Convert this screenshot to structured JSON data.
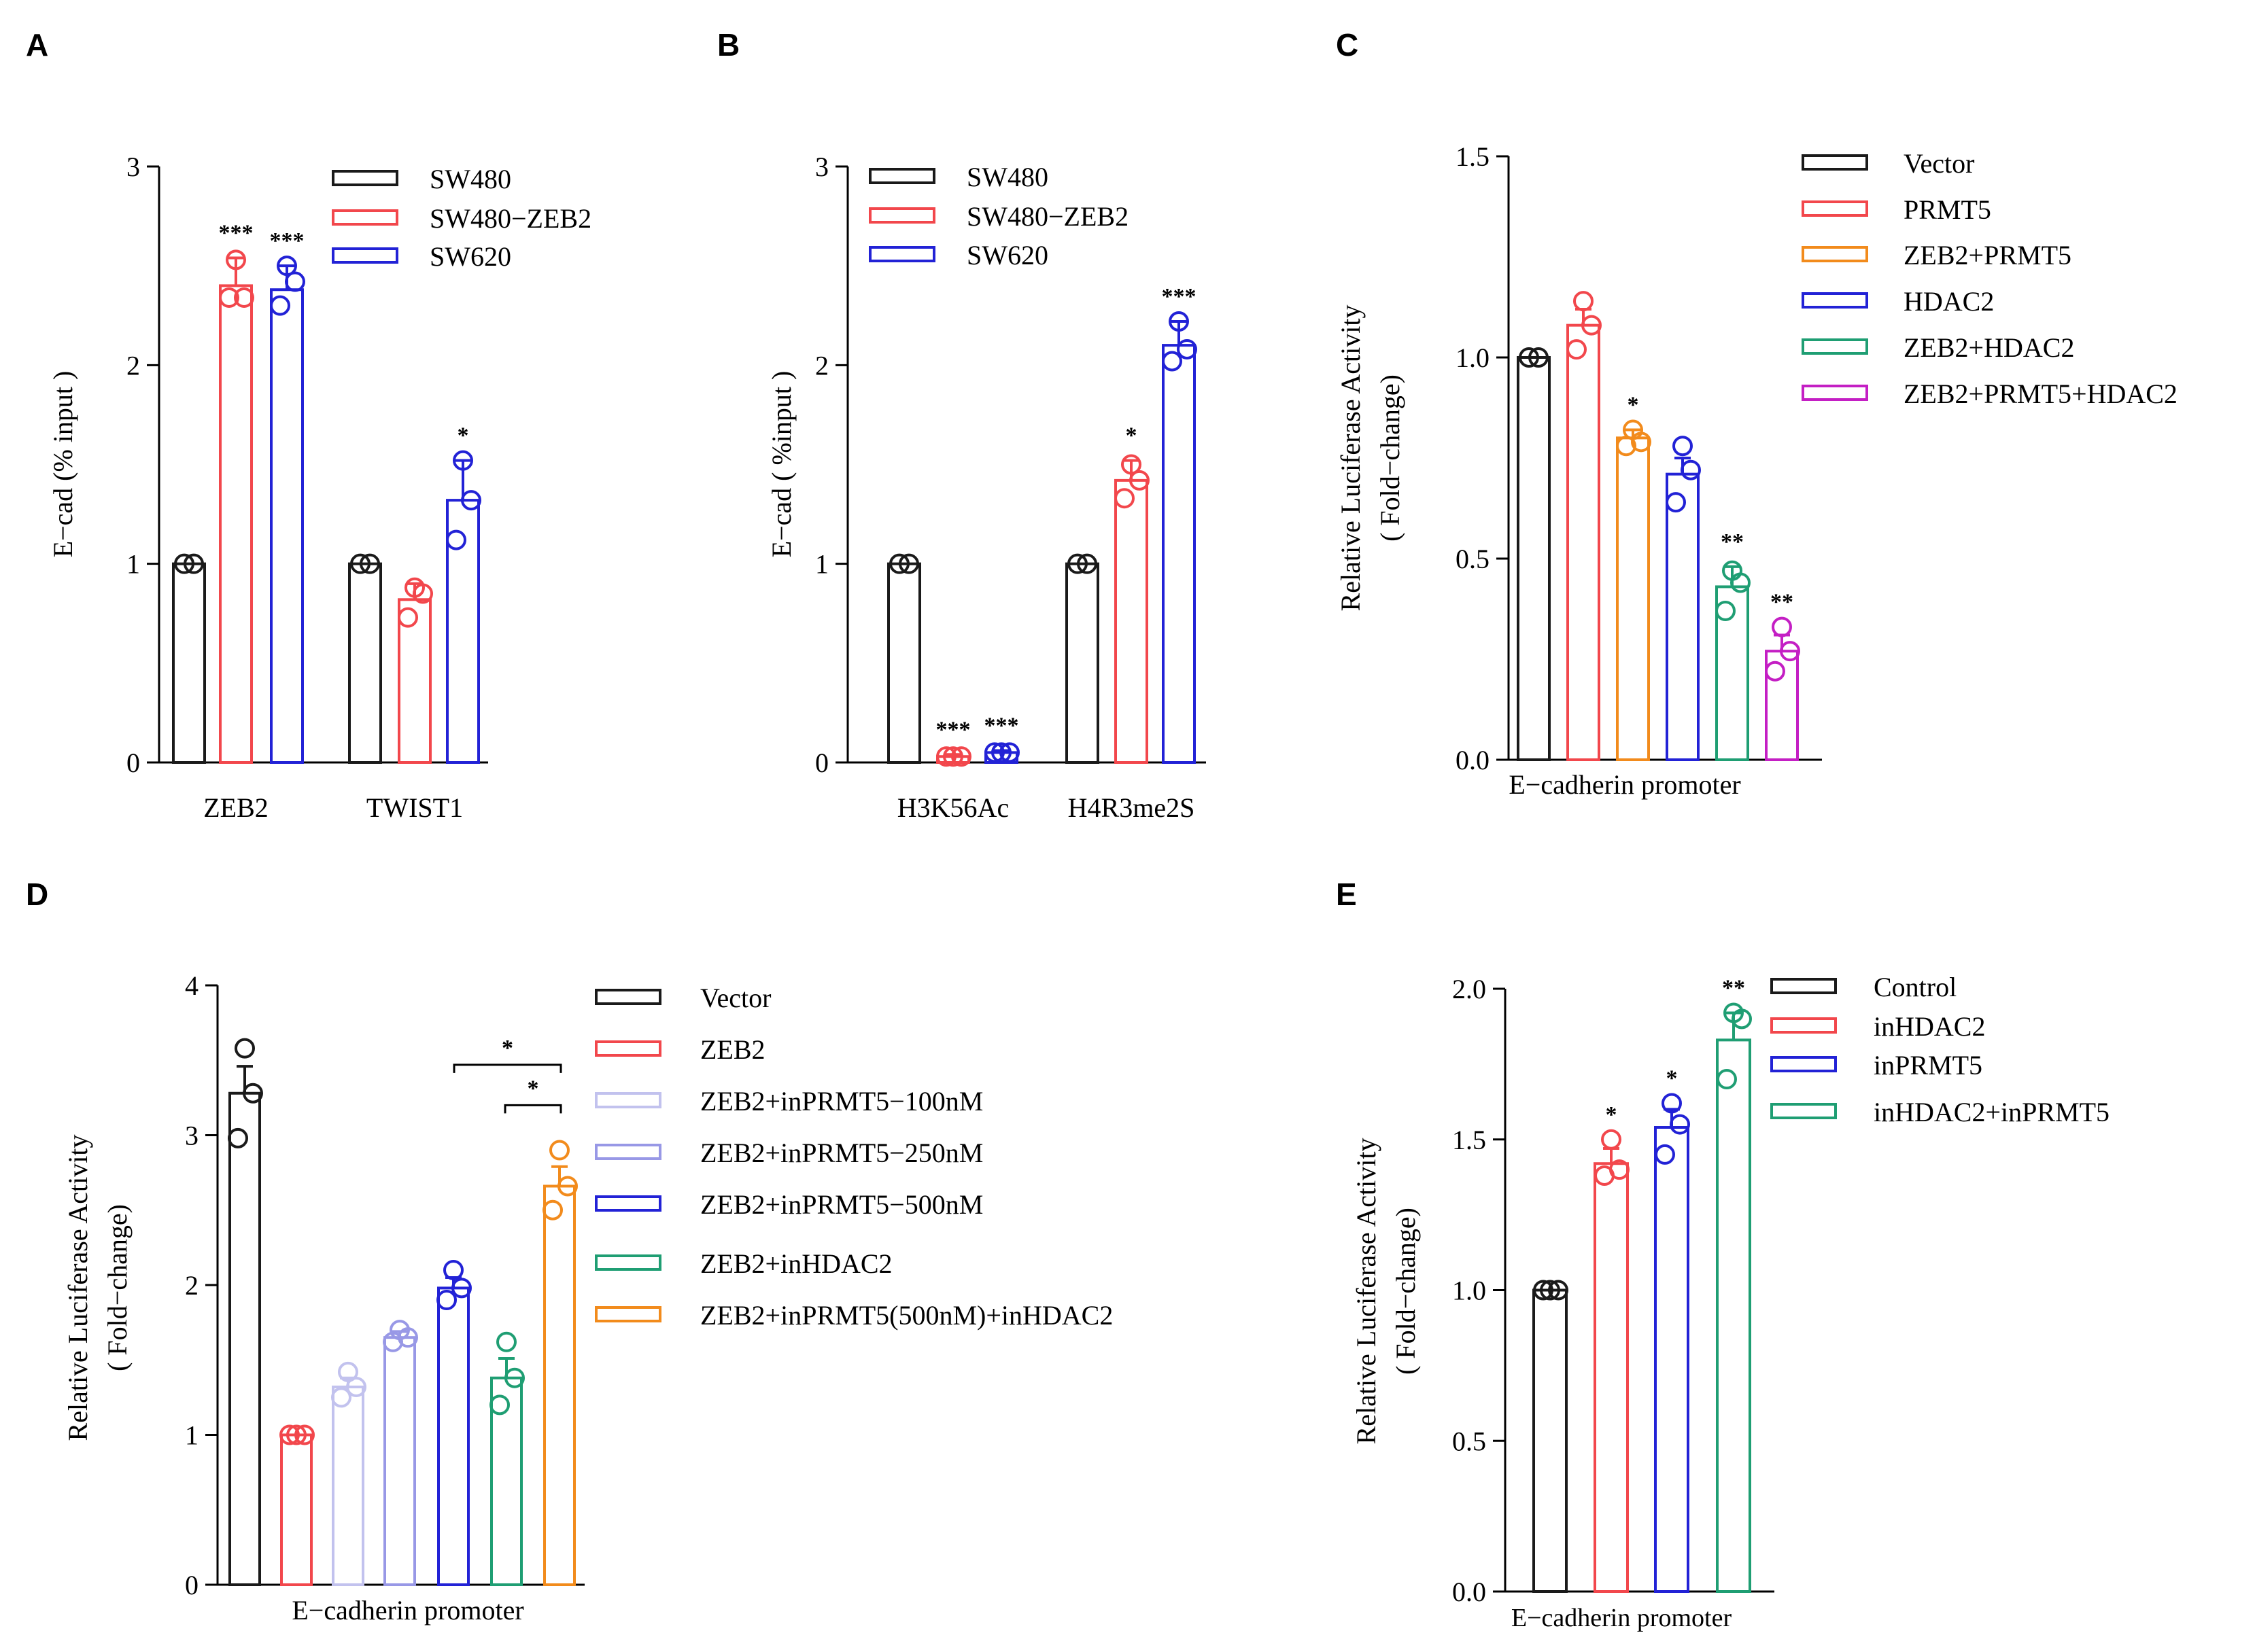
{
  "colors": {
    "black": "#1a1a1a",
    "red": "#f2474c",
    "blue": "#2222d6",
    "orange": "#f28b1c",
    "green": "#1f9e73",
    "magenta": "#c41fc4",
    "lav1": "#c2c2ee",
    "lav2": "#9898e6"
  },
  "chart_data": [
    {
      "panel": "A",
      "type": "bar",
      "title": "",
      "ylabel": "E−cad (% input )",
      "xlabel": "",
      "ylim": [
        0,
        3
      ],
      "yticks": [
        "0",
        "1",
        "2",
        "3"
      ],
      "categories": [
        "ZEB2",
        "TWIST1"
      ],
      "series": [
        {
          "name": "SW480",
          "color": "black",
          "values": [
            1.0,
            1.0
          ],
          "errors": [
            0.0,
            0.0
          ],
          "points": [
            [
              1.0,
              1.0
            ],
            [
              1.0,
              1.0
            ]
          ],
          "sig": [
            "",
            ""
          ]
        },
        {
          "name": "SW480−ZEB2",
          "color": "red",
          "values": [
            2.4,
            0.82
          ],
          "errors": [
            0.14,
            0.08
          ],
          "points": [
            [
              2.53,
              2.34,
              2.34
            ],
            [
              0.88,
              0.85,
              0.73
            ]
          ],
          "sig": [
            "***",
            ""
          ]
        },
        {
          "name": "SW620",
          "color": "blue",
          "values": [
            2.38,
            1.32
          ],
          "errors": [
            0.12,
            0.2
          ],
          "points": [
            [
              2.5,
              2.42,
              2.3
            ],
            [
              1.52,
              1.32,
              1.12
            ]
          ],
          "sig": [
            "***",
            "*"
          ]
        }
      ],
      "legend": "top-right"
    },
    {
      "panel": "B",
      "type": "bar",
      "title": "",
      "ylabel": "E−cad ( %input )",
      "xlabel": "",
      "ylim": [
        0,
        3
      ],
      "yticks": [
        "0",
        "1",
        "2",
        "3"
      ],
      "categories": [
        "H3K56Ac",
        "H4R3me2S"
      ],
      "series": [
        {
          "name": "SW480",
          "color": "black",
          "values": [
            1.0,
            1.0
          ],
          "errors": [
            0.0,
            0.0
          ],
          "points": [
            [
              1.0,
              1.0
            ],
            [
              1.0,
              1.0
            ]
          ],
          "sig": [
            "",
            ""
          ]
        },
        {
          "name": "SW480−ZEB2",
          "color": "red",
          "values": [
            0.03,
            1.42
          ],
          "errors": [
            0.01,
            0.1
          ],
          "points": [
            [
              0.03,
              0.03,
              0.03
            ],
            [
              1.5,
              1.42,
              1.33
            ]
          ],
          "sig": [
            "***",
            "*"
          ]
        },
        {
          "name": "SW620",
          "color": "blue",
          "values": [
            0.05,
            2.1
          ],
          "errors": [
            0.01,
            0.12
          ],
          "points": [
            [
              0.05,
              0.05,
              0.05
            ],
            [
              2.22,
              2.08,
              2.02
            ]
          ],
          "sig": [
            "***",
            "***"
          ]
        }
      ],
      "legend": "top-left"
    },
    {
      "panel": "C",
      "type": "bar",
      "title": "",
      "ylabel": "Relative Luciferase Activity",
      "ylabel2": "( Fold−change)",
      "xlabel": "E−cadherin promoter",
      "ylim": [
        0,
        1.5
      ],
      "yticks": [
        "0.0",
        "0.5",
        "1.0",
        "1.5"
      ],
      "bars": [
        {
          "name": "Vector",
          "color": "black",
          "value": 1.0,
          "error": 0.0,
          "points": [
            1.0,
            1.0
          ],
          "sig": ""
        },
        {
          "name": "PRMT5",
          "color": "red",
          "value": 1.08,
          "error": 0.04,
          "points": [
            1.14,
            1.08,
            1.02
          ],
          "sig": ""
        },
        {
          "name": "ZEB2+PRMT5",
          "color": "orange",
          "value": 0.8,
          "error": 0.02,
          "points": [
            0.82,
            0.79,
            0.78
          ],
          "sig": "*"
        },
        {
          "name": "HDAC2",
          "color": "blue",
          "value": 0.71,
          "error": 0.04,
          "points": [
            0.78,
            0.72,
            0.64
          ],
          "sig": ""
        },
        {
          "name": "ZEB2+HDAC2",
          "color": "green",
          "value": 0.43,
          "error": 0.05,
          "points": [
            0.47,
            0.44,
            0.37
          ],
          "sig": "**"
        },
        {
          "name": "ZEB2+PRMT5+HDAC2",
          "color": "magenta",
          "value": 0.27,
          "error": 0.04,
          "points": [
            0.33,
            0.27,
            0.22
          ],
          "sig": "**"
        }
      ],
      "legend": "top-right"
    },
    {
      "panel": "D",
      "type": "bar",
      "title": "",
      "ylabel": "Relative Luciferase Activity",
      "ylabel2": "( Fold−change)",
      "xlabel": "E−cadherin promoter",
      "ylim": [
        0,
        4
      ],
      "yticks": [
        "0",
        "1",
        "2",
        "3",
        "4"
      ],
      "bars": [
        {
          "name": "Vector",
          "color": "black",
          "value": 3.28,
          "error": 0.18,
          "points": [
            3.58,
            3.28,
            2.98
          ],
          "sig": ""
        },
        {
          "name": "ZEB2",
          "color": "red",
          "value": 1.0,
          "error": 0.0,
          "points": [
            1.0,
            1.0,
            1.0
          ],
          "sig": ""
        },
        {
          "name": "ZEB2+inPRMT5−100nM",
          "color": "lav1",
          "value": 1.32,
          "error": 0.06,
          "points": [
            1.42,
            1.32,
            1.25
          ],
          "sig": ""
        },
        {
          "name": "ZEB2+inPRMT5−250nM",
          "color": "lav2",
          "value": 1.65,
          "error": 0.04,
          "points": [
            1.7,
            1.65,
            1.62
          ],
          "sig": ""
        },
        {
          "name": "ZEB2+inPRMT5−500nM",
          "color": "blue",
          "value": 1.98,
          "error": 0.07,
          "points": [
            2.1,
            1.98,
            1.9
          ],
          "sig": ""
        },
        {
          "name": "ZEB2+inHDAC2",
          "color": "green",
          "value": 1.38,
          "error": 0.13,
          "points": [
            1.62,
            1.38,
            1.2
          ],
          "sig": ""
        },
        {
          "name": "ZEB2+inPRMT5(500nM)+inHDAC2",
          "color": "orange",
          "value": 2.66,
          "error": 0.13,
          "points": [
            2.9,
            2.66,
            2.5
          ],
          "sig": ""
        }
      ],
      "brackets": [
        {
          "from": 0,
          "to": 6,
          "y": 3.47,
          "label": "*"
        },
        {
          "from": 5,
          "to": 6,
          "y": 3.2,
          "label": "*"
        }
      ],
      "legend": "top-right"
    },
    {
      "panel": "E",
      "type": "bar",
      "title": "",
      "ylabel": "Relative Luciferase Activity",
      "ylabel2": "( Fold−change)",
      "xlabel": "E−cadherin promoter",
      "ylim": [
        0,
        2.0
      ],
      "yticks": [
        "0.0",
        "0.5",
        "1.0",
        "1.5",
        "2.0"
      ],
      "bars": [
        {
          "name": "Control",
          "color": "black",
          "value": 1.0,
          "error": 0.0,
          "points": [
            1.0,
            1.0,
            1.0
          ],
          "sig": ""
        },
        {
          "name": "inHDAC2",
          "color": "red",
          "value": 1.42,
          "error": 0.05,
          "points": [
            1.5,
            1.4,
            1.38
          ],
          "sig": "*"
        },
        {
          "name": "inPRMT5",
          "color": "blue",
          "value": 1.54,
          "error": 0.06,
          "points": [
            1.62,
            1.55,
            1.45
          ],
          "sig": "*"
        },
        {
          "name": "inHDAC2+inPRMT5",
          "color": "green",
          "value": 1.83,
          "error": 0.09,
          "points": [
            1.92,
            1.9,
            1.7
          ],
          "sig": "**"
        }
      ],
      "legend": "top-right"
    }
  ]
}
